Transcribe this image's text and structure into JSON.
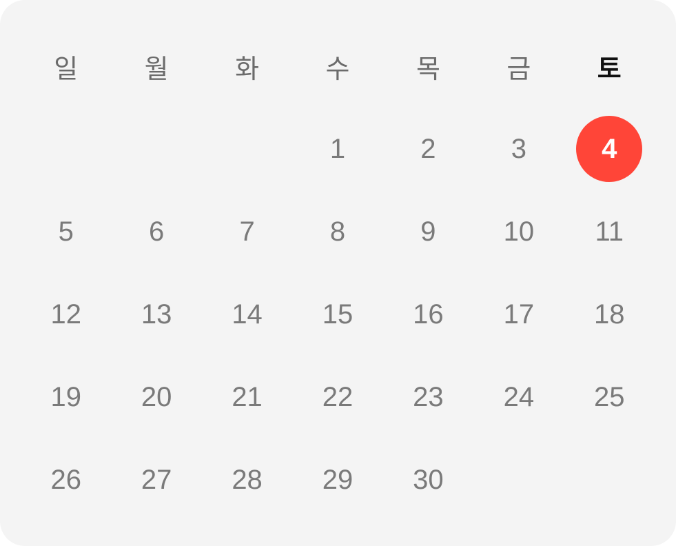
{
  "weekdays": [
    "일",
    "월",
    "화",
    "수",
    "목",
    "금",
    "토"
  ],
  "days": [
    "",
    "",
    "",
    "1",
    "2",
    "3",
    "4",
    "5",
    "6",
    "7",
    "8",
    "9",
    "10",
    "11",
    "12",
    "13",
    "14",
    "15",
    "16",
    "17",
    "18",
    "19",
    "20",
    "21",
    "22",
    "23",
    "24",
    "25",
    "26",
    "27",
    "28",
    "29",
    "30",
    "",
    ""
  ],
  "today": "4",
  "today_weekday_index": 6,
  "colors": {
    "background": "#f4f4f4",
    "today_fill": "#ff4538",
    "day_text": "#7a7a7a",
    "weekday_text": "#6b6b6b",
    "today_weekday_text": "#111111"
  }
}
